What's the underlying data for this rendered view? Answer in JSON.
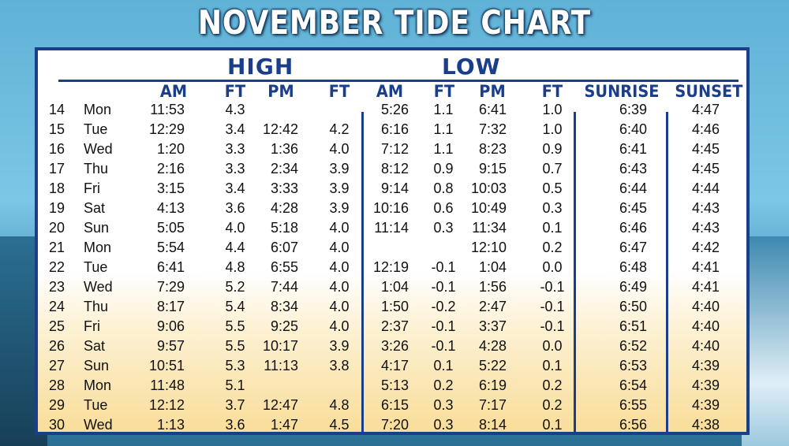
{
  "title": "NOVEMBER TIDE CHART",
  "groups": {
    "high": "HIGH",
    "low": "LOW"
  },
  "headers": {
    "am": "AM",
    "ft": "FT",
    "pm": "PM",
    "sunrise": "SUNRISE",
    "sunset": "SUNSET"
  },
  "rows": [
    {
      "date": "14",
      "day": "Mon",
      "high_am": "11:53",
      "high_am_ft": "4.3",
      "high_pm": "",
      "high_pm_ft": "",
      "low_am": "5:26",
      "low_am_ft": "1.1",
      "low_pm": "6:41",
      "low_pm_ft": "1.0",
      "sunrise": "6:39",
      "sunset": "4:47"
    },
    {
      "date": "15",
      "day": "Tue",
      "high_am": "12:29",
      "high_am_ft": "3.4",
      "high_pm": "12:42",
      "high_pm_ft": "4.2",
      "low_am": "6:16",
      "low_am_ft": "1.1",
      "low_pm": "7:32",
      "low_pm_ft": "1.0",
      "sunrise": "6:40",
      "sunset": "4:46"
    },
    {
      "date": "16",
      "day": "Wed",
      "high_am": "1:20",
      "high_am_ft": "3.3",
      "high_pm": "1:36",
      "high_pm_ft": "4.0",
      "low_am": "7:12",
      "low_am_ft": "1.1",
      "low_pm": "8:23",
      "low_pm_ft": "0.9",
      "sunrise": "6:41",
      "sunset": "4:45"
    },
    {
      "date": "17",
      "day": "Thu",
      "high_am": "2:16",
      "high_am_ft": "3.3",
      "high_pm": "2:34",
      "high_pm_ft": "3.9",
      "low_am": "8:12",
      "low_am_ft": "0.9",
      "low_pm": "9:15",
      "low_pm_ft": "0.7",
      "sunrise": "6:43",
      "sunset": "4:45"
    },
    {
      "date": "18",
      "day": "Fri",
      "high_am": "3:15",
      "high_am_ft": "3.4",
      "high_pm": "3:33",
      "high_pm_ft": "3.9",
      "low_am": "9:14",
      "low_am_ft": "0.8",
      "low_pm": "10:03",
      "low_pm_ft": "0.5",
      "sunrise": "6:44",
      "sunset": "4:44"
    },
    {
      "date": "19",
      "day": "Sat",
      "high_am": "4:13",
      "high_am_ft": "3.6",
      "high_pm": "4:28",
      "high_pm_ft": "3.9",
      "low_am": "10:16",
      "low_am_ft": "0.6",
      "low_pm": "10:49",
      "low_pm_ft": "0.3",
      "sunrise": "6:45",
      "sunset": "4:43"
    },
    {
      "date": "20",
      "day": "Sun",
      "high_am": "5:05",
      "high_am_ft": "4.0",
      "high_pm": "5:18",
      "high_pm_ft": "4.0",
      "low_am": "11:14",
      "low_am_ft": "0.3",
      "low_pm": "11:34",
      "low_pm_ft": "0.1",
      "sunrise": "6:46",
      "sunset": "4:43"
    },
    {
      "date": "21",
      "day": "Mon",
      "high_am": "5:54",
      "high_am_ft": "4.4",
      "high_pm": "6:07",
      "high_pm_ft": "4.0",
      "low_am": "",
      "low_am_ft": "",
      "low_pm": "12:10",
      "low_pm_ft": "0.2",
      "sunrise": "6:47",
      "sunset": "4:42"
    },
    {
      "date": "22",
      "day": "Tue",
      "high_am": "6:41",
      "high_am_ft": "4.8",
      "high_pm": "6:55",
      "high_pm_ft": "4.0",
      "low_am": "12:19",
      "low_am_ft": "-0.1",
      "low_pm": "1:04",
      "low_pm_ft": "0.0",
      "sunrise": "6:48",
      "sunset": "4:41"
    },
    {
      "date": "23",
      "day": "Wed",
      "high_am": "7:29",
      "high_am_ft": "5.2",
      "high_pm": "7:44",
      "high_pm_ft": "4.0",
      "low_am": "1:04",
      "low_am_ft": "-0.1",
      "low_pm": "1:56",
      "low_pm_ft": "-0.1",
      "sunrise": "6:49",
      "sunset": "4:41"
    },
    {
      "date": "24",
      "day": "Thu",
      "high_am": "8:17",
      "high_am_ft": "5.4",
      "high_pm": "8:34",
      "high_pm_ft": "4.0",
      "low_am": "1:50",
      "low_am_ft": "-0.2",
      "low_pm": "2:47",
      "low_pm_ft": "-0.1",
      "sunrise": "6:50",
      "sunset": "4:40"
    },
    {
      "date": "25",
      "day": "Fri",
      "high_am": "9:06",
      "high_am_ft": "5.5",
      "high_pm": "9:25",
      "high_pm_ft": "4.0",
      "low_am": "2:37",
      "low_am_ft": "-0.1",
      "low_pm": "3:37",
      "low_pm_ft": "-0.1",
      "sunrise": "6:51",
      "sunset": "4:40"
    },
    {
      "date": "26",
      "day": "Sat",
      "high_am": "9:57",
      "high_am_ft": "5.5",
      "high_pm": "10:17",
      "high_pm_ft": "3.9",
      "low_am": "3:26",
      "low_am_ft": "-0.1",
      "low_pm": "4:28",
      "low_pm_ft": "0.0",
      "sunrise": "6:52",
      "sunset": "4:40"
    },
    {
      "date": "27",
      "day": "Sun",
      "high_am": "10:51",
      "high_am_ft": "5.3",
      "high_pm": "11:13",
      "high_pm_ft": "3.8",
      "low_am": "4:17",
      "low_am_ft": "0.1",
      "low_pm": "5:22",
      "low_pm_ft": "0.1",
      "sunrise": "6:53",
      "sunset": "4:39"
    },
    {
      "date": "28",
      "day": "Mon",
      "high_am": "11:48",
      "high_am_ft": "5.1",
      "high_pm": "",
      "high_pm_ft": "",
      "low_am": "5:13",
      "low_am_ft": "0.2",
      "low_pm": "6:19",
      "low_pm_ft": "0.2",
      "sunrise": "6:54",
      "sunset": "4:39"
    },
    {
      "date": "29",
      "day": "Tue",
      "high_am": "12:12",
      "high_am_ft": "3.7",
      "high_pm": "12:47",
      "high_pm_ft": "4.8",
      "low_am": "6:15",
      "low_am_ft": "0.3",
      "low_pm": "7:17",
      "low_pm_ft": "0.2",
      "sunrise": "6:55",
      "sunset": "4:39"
    },
    {
      "date": "30",
      "day": "Wed",
      "high_am": "1:13",
      "high_am_ft": "3.6",
      "high_pm": "1:47",
      "high_pm_ft": "4.5",
      "low_am": "7:20",
      "low_am_ft": "0.3",
      "low_pm": "8:14",
      "low_pm_ft": "0.1",
      "sunrise": "6:56",
      "sunset": "4:38"
    }
  ]
}
